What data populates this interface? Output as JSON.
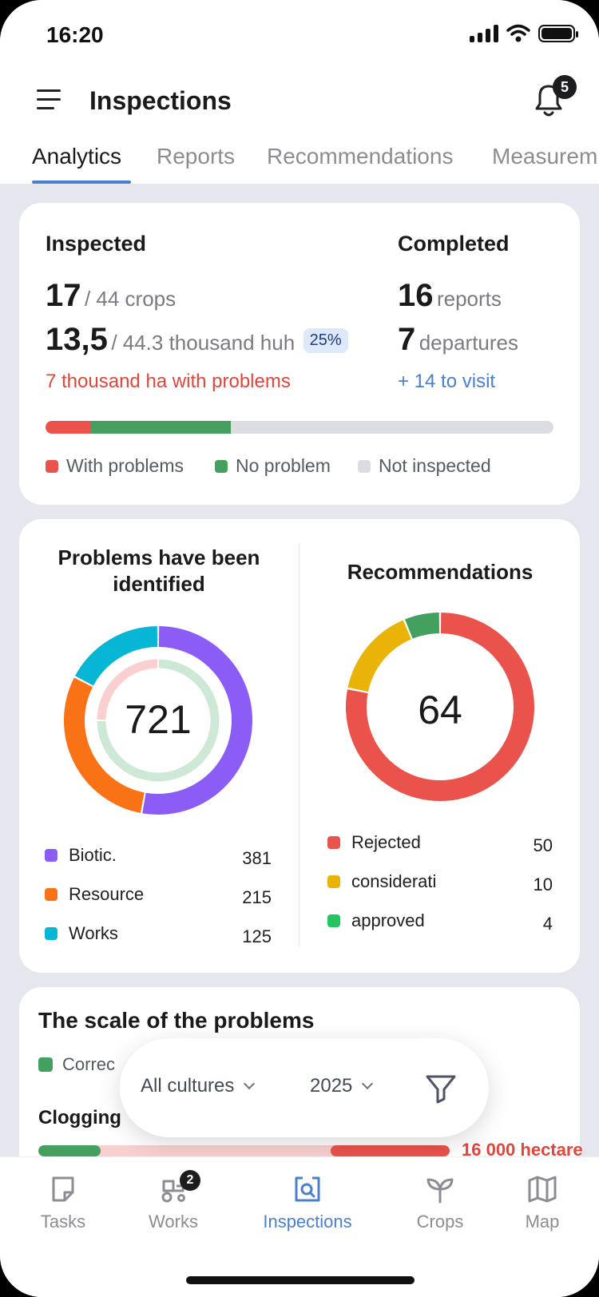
{
  "status_bar": {
    "time": "16:20"
  },
  "header": {
    "title": "Inspections",
    "notifications_count": "5"
  },
  "tabs": [
    {
      "label": "Analytics",
      "active": true
    },
    {
      "label": "Reports"
    },
    {
      "label": "Recommendations"
    },
    {
      "label": "Measurem"
    }
  ],
  "summary": {
    "inspected_label": "Inspected",
    "inspected_count": "17",
    "inspected_total": "/ 44 crops",
    "area_value": "13,5",
    "area_total": "/ 44.3 thousand huh",
    "area_percent": "25%",
    "problems_text": "7 thousand ha with problems",
    "completed_label": "Completed",
    "reports_count": "16",
    "reports_label": "reports",
    "departures_count": "7",
    "departures_label": "departures",
    "to_visit_text": "+ 14 to visit",
    "progress": {
      "with_problems_pct": 9,
      "no_problem_pct": 27.5
    },
    "legend": [
      {
        "label": "With problems",
        "color": "#e9534b"
      },
      {
        "label": "No problem",
        "color": "#44a05f"
      },
      {
        "label": "Not inspected",
        "color": "#dcdde3"
      }
    ]
  },
  "problems_chart": {
    "title_line1": "Problems have been",
    "title_line2": "identified",
    "total": "721",
    "items": [
      {
        "label": "Biotic.",
        "value": "381",
        "color": "#8b5cf6"
      },
      {
        "label": "Resource",
        "value": "215",
        "color": "#f97316"
      },
      {
        "label": "Works",
        "value": "125",
        "color": "#06b6d4"
      }
    ],
    "inner_ring": [
      {
        "value": 0.75,
        "color": "#cde9d6"
      },
      {
        "value": 0.25,
        "color": "#f9d0cf"
      }
    ]
  },
  "recommendations_chart": {
    "title": "Recommendations",
    "total": "64",
    "items": [
      {
        "label": "Rejected",
        "value": "50",
        "color": "#e9534b"
      },
      {
        "label": "considerati",
        "value": "10",
        "color": "#eab308"
      },
      {
        "label": "approved",
        "value": "4",
        "color": "#44a05f"
      }
    ]
  },
  "scale": {
    "title": "The scale of the problems",
    "legend_label": "Correc",
    "clogging_label": "Clogging",
    "clogging_value": "16 000 hectare"
  },
  "filters": {
    "culture": "All cultures",
    "year": "2025"
  },
  "bottom_nav": [
    {
      "label": "Tasks"
    },
    {
      "label": "Works",
      "badge": "2"
    },
    {
      "label": "Inspections",
      "active": true
    },
    {
      "label": "Crops"
    },
    {
      "label": "Map"
    }
  ],
  "colors": {
    "accent": "#4a7fd0",
    "danger": "#e9534b",
    "success": "#44a05f"
  }
}
